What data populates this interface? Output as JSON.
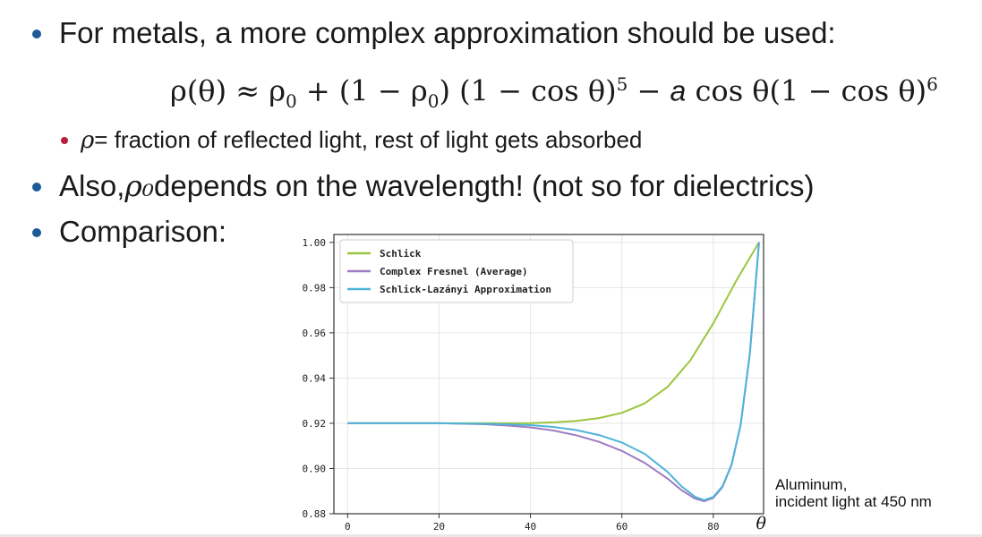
{
  "colors": {
    "bullet_main": "#1d5b96",
    "bullet_sub": "#b4203a"
  },
  "bullets": {
    "b1_text": "For metals, a more complex approximation should be used:",
    "sub1_symbol": "ρ",
    "sub1_text": " = fraction of reflected light, rest of light gets absorbed",
    "b2_prefix": "Also, ",
    "b2_symbol": "ρ₀",
    "b2_suffix": " depends on the wavelength! (not so for dielectrics)",
    "b3_text": "Comparison:"
  },
  "equation": {
    "lhs": "ρ(θ) ≈ ρ",
    "sub0": "0",
    "mid": " + (1 − ρ",
    "sub0b": "0",
    "mid2": ") (1 − cos θ)",
    "exp5": "5",
    "mid3": " − ",
    "a": "a",
    "mid4": " cos θ(1 − cos θ)",
    "exp6": "6"
  },
  "caption": {
    "line1": "Aluminum,",
    "line2": "incident light at 450 nm"
  },
  "chart_data": {
    "type": "line",
    "title": "",
    "xlabel": "θ",
    "ylabel": "",
    "xlim": [
      -3,
      91
    ],
    "ylim": [
      0.88,
      1.0035
    ],
    "xticks": [
      0,
      20,
      40,
      60,
      80
    ],
    "yticks": [
      0.88,
      0.9,
      0.92,
      0.94,
      0.96,
      0.98,
      1.0
    ],
    "ytick_labels": [
      "0.88",
      "0.90",
      "0.92",
      "0.94",
      "0.96",
      "0.98",
      "1.00"
    ],
    "grid": true,
    "legend": "top-left",
    "series": [
      {
        "name": "Schlick",
        "color": "#9bc53d",
        "x": [
          0,
          10,
          20,
          30,
          40,
          45,
          50,
          55,
          60,
          65,
          70,
          75,
          80,
          85,
          90
        ],
        "y": [
          0.92,
          0.92,
          0.92,
          0.92,
          0.9201,
          0.9204,
          0.921,
          0.9223,
          0.9246,
          0.9288,
          0.9361,
          0.9479,
          0.9642,
          0.983,
          1.0
        ]
      },
      {
        "name": "Complex Fresnel (Average)",
        "color": "#9e7cc1",
        "x": [
          0,
          10,
          20,
          30,
          35,
          40,
          45,
          50,
          55,
          60,
          65,
          70,
          73,
          76,
          78,
          80,
          82,
          84,
          86,
          88,
          90
        ],
        "y": [
          0.92,
          0.92,
          0.92,
          0.9196,
          0.919,
          0.9182,
          0.9168,
          0.9147,
          0.9118,
          0.9078,
          0.9025,
          0.8955,
          0.8905,
          0.8867,
          0.8855,
          0.887,
          0.8917,
          0.9016,
          0.9196,
          0.9509,
          1.0
        ]
      },
      {
        "name": "Schlick-Lazányi Approximation",
        "color": "#4fb3d9",
        "x": [
          0,
          10,
          20,
          30,
          40,
          45,
          50,
          55,
          60,
          65,
          70,
          73,
          76,
          78,
          80,
          82,
          84,
          86,
          88,
          90
        ],
        "y": [
          0.92,
          0.92,
          0.92,
          0.9198,
          0.9192,
          0.9184,
          0.917,
          0.9148,
          0.9115,
          0.9065,
          0.8985,
          0.8922,
          0.8875,
          0.886,
          0.8874,
          0.8921,
          0.9018,
          0.9197,
          0.951,
          1.0
        ]
      }
    ]
  }
}
